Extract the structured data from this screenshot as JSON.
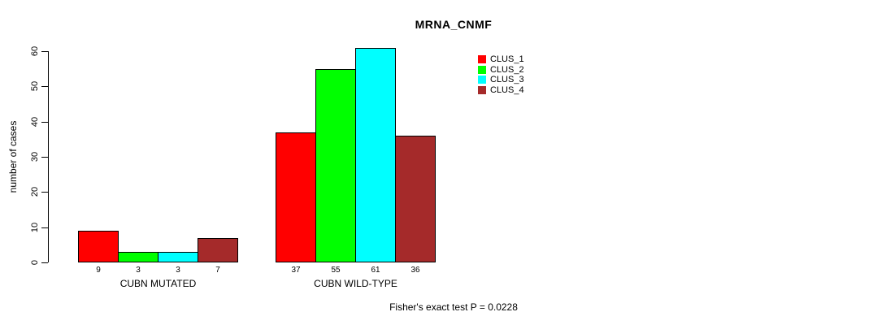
{
  "chart_data": {
    "type": "bar",
    "title": "MRNA_CNMF",
    "ylabel": "number of cases",
    "annotation": "Fisher's exact test P = 0.0228",
    "ylim": [
      0,
      62
    ],
    "yticks": [
      0,
      10,
      20,
      30,
      40,
      50,
      60
    ],
    "grid": "off",
    "legend_position": "right",
    "bar_value_labels_shown": true,
    "categories": [
      "CUBN MUTATED",
      "CUBN WILD-TYPE"
    ],
    "series": [
      {
        "name": "CLUS_1",
        "color": "#FF0000",
        "values": [
          9,
          37
        ]
      },
      {
        "name": "CLUS_2",
        "color": "#00FF00",
        "values": [
          3,
          55
        ]
      },
      {
        "name": "CLUS_3",
        "color": "#00FFFF",
        "values": [
          3,
          61
        ]
      },
      {
        "name": "CLUS_4",
        "color": "#A52A2A",
        "values": [
          7,
          36
        ]
      }
    ]
  }
}
